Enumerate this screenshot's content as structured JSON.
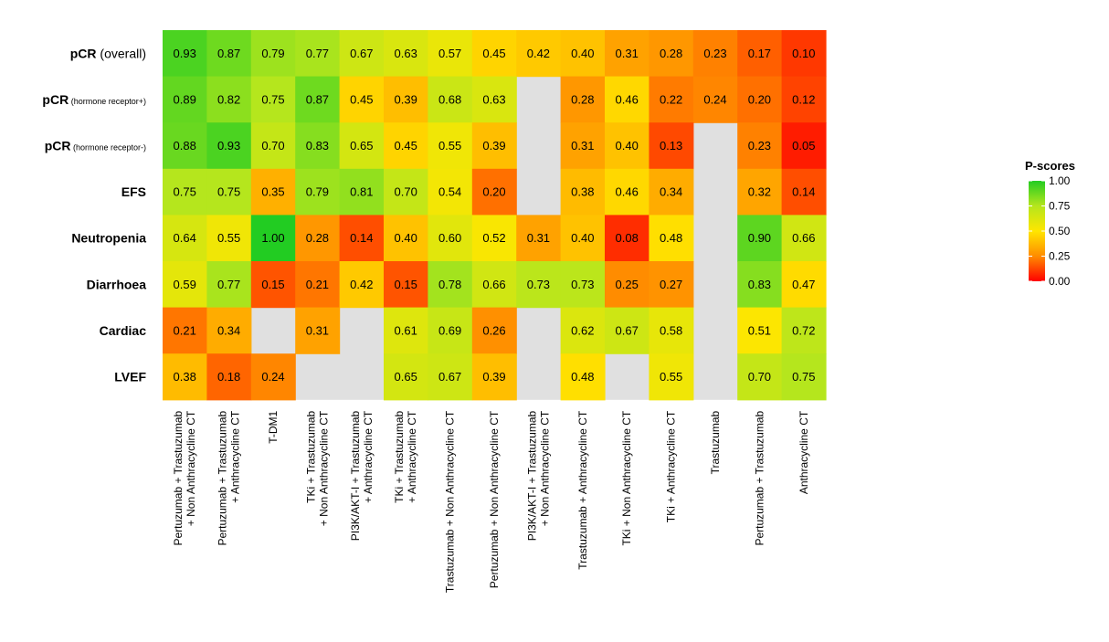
{
  "chart_data": {
    "type": "heatmap",
    "title": "",
    "rows": [
      {
        "main": "pCR",
        "sub": "(overall)",
        "sub_style": "normal"
      },
      {
        "main": "pCR",
        "sub": "(hormone receptor+)",
        "sub_style": "small"
      },
      {
        "main": "pCR",
        "sub": "(hormone receptor-)",
        "sub_style": "small"
      },
      {
        "main": "EFS",
        "sub": "",
        "sub_style": "normal"
      },
      {
        "main": "Neutropenia",
        "sub": "",
        "sub_style": "normal"
      },
      {
        "main": "Diarrhoea",
        "sub": "",
        "sub_style": "normal"
      },
      {
        "main": "Cardiac",
        "sub": "",
        "sub_style": "normal"
      },
      {
        "main": "LVEF",
        "sub": "",
        "sub_style": "normal"
      }
    ],
    "columns": [
      [
        "Pertuzumab + Trastuzumab",
        "+ Non Anthracycline CT"
      ],
      [
        "Pertuzumab + Trastuzumab",
        "+ Anthracycline CT"
      ],
      [
        "T-DM1"
      ],
      [
        "TKi + Trastuzumab",
        "+ Non Anthracycline CT"
      ],
      [
        "PI3K/AKT-I + Trastuzumab",
        "+ Anthracycline CT"
      ],
      [
        "TKi + Trastuzumab",
        "+ Anthracycline CT"
      ],
      [
        "Trastuzumab + Non Anthracycline CT"
      ],
      [
        "Pertuzumab + Non Anthracycline CT"
      ],
      [
        "PI3K/AKT-I + Trastuzumab",
        "+ Non Anthracycline CT"
      ],
      [
        "Trastuzumab + Anthracycline CT"
      ],
      [
        "TKi + Non Anthracycline CT"
      ],
      [
        "TKi + Anthracycline CT"
      ],
      [
        "Trastuzumab"
      ],
      [
        "Pertuzumab + Trastuzumab"
      ],
      [
        "Anthracycline CT"
      ]
    ],
    "values": [
      [
        0.93,
        0.87,
        0.79,
        0.77,
        0.67,
        0.63,
        0.57,
        0.45,
        0.42,
        0.4,
        0.31,
        0.28,
        0.23,
        0.17,
        0.1
      ],
      [
        0.89,
        0.82,
        0.75,
        0.87,
        0.45,
        0.39,
        0.68,
        0.63,
        null,
        0.28,
        0.46,
        0.22,
        0.24,
        0.2,
        0.12
      ],
      [
        0.88,
        0.93,
        0.7,
        0.83,
        0.65,
        0.45,
        0.55,
        0.39,
        null,
        0.31,
        0.4,
        0.13,
        null,
        0.23,
        0.05
      ],
      [
        0.75,
        0.75,
        0.35,
        0.79,
        0.81,
        0.7,
        0.54,
        0.2,
        null,
        0.38,
        0.46,
        0.34,
        null,
        0.32,
        0.14
      ],
      [
        0.64,
        0.55,
        1.0,
        0.28,
        0.14,
        0.4,
        0.6,
        0.52,
        0.31,
        0.4,
        0.08,
        0.48,
        null,
        0.9,
        0.66
      ],
      [
        0.59,
        0.77,
        0.15,
        0.21,
        0.42,
        0.15,
        0.78,
        0.66,
        0.73,
        0.73,
        0.25,
        0.27,
        null,
        0.83,
        0.47
      ],
      [
        0.21,
        0.34,
        null,
        0.31,
        null,
        0.61,
        0.69,
        0.26,
        null,
        0.62,
        0.67,
        0.58,
        null,
        0.51,
        0.72
      ],
      [
        0.38,
        0.18,
        0.24,
        null,
        null,
        0.65,
        0.67,
        0.39,
        null,
        0.48,
        null,
        0.55,
        null,
        0.7,
        0.75
      ]
    ],
    "value_format_decimals": 2,
    "missing_color": "#e0e0e0",
    "color_scale": {
      "stops": [
        {
          "value": 0.0,
          "color": "#ff0000"
        },
        {
          "value": 0.25,
          "color": "#ff8c00"
        },
        {
          "value": 0.5,
          "color": "#ffe600"
        },
        {
          "value": 0.75,
          "color": "#b5e61d"
        },
        {
          "value": 1.0,
          "color": "#22cc22"
        }
      ]
    },
    "legend": {
      "title": "P-scores",
      "ticks": [
        "1.00",
        "0.75",
        "0.50",
        "0.25",
        "0.00"
      ],
      "placement": "right"
    }
  }
}
